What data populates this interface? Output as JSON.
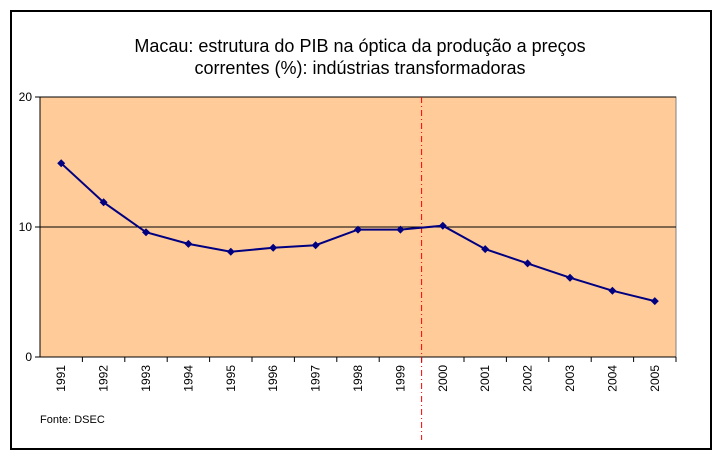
{
  "chart_data": {
    "type": "line",
    "title": "Macau: estrutura do PIB na óptica da produção a preços correntes (%): indústrias transformadoras",
    "source": "Fonte: DSEC",
    "categories": [
      "1991",
      "1992",
      "1993",
      "1994",
      "1995",
      "1996",
      "1997",
      "1998",
      "1999",
      "2000",
      "2001",
      "2002",
      "2003",
      "2004",
      "2005"
    ],
    "series": [
      {
        "name": "indústrias transformadoras",
        "color": "#000080",
        "values": [
          14.9,
          11.9,
          9.6,
          8.7,
          8.1,
          8.4,
          8.6,
          9.8,
          9.8,
          10.1,
          8.3,
          7.2,
          6.1,
          5.1,
          4.3
        ]
      }
    ],
    "ylim": [
      0,
      20
    ],
    "yticks": [
      0,
      10,
      20
    ],
    "grid": true,
    "background": "#FFCC99"
  }
}
